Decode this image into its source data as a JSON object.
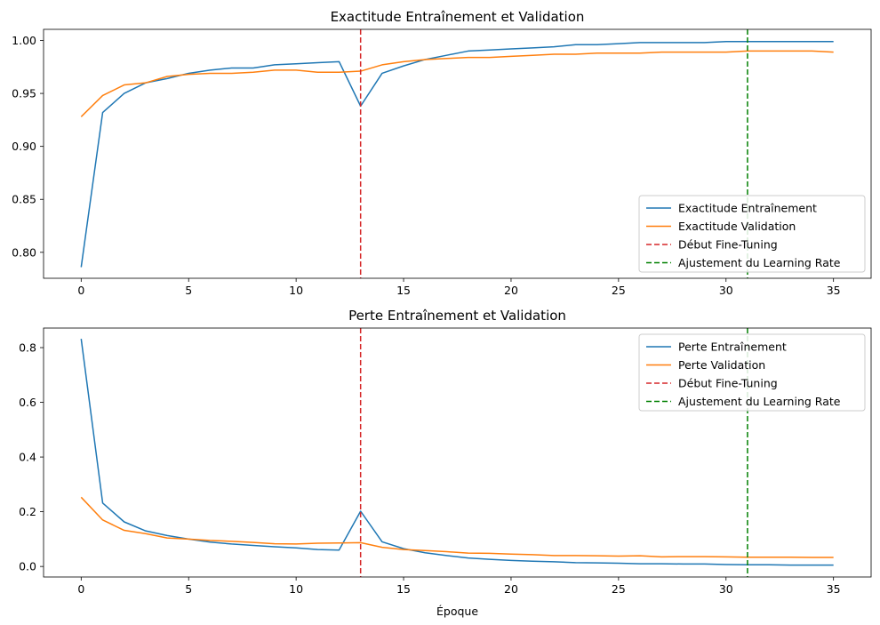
{
  "chart_data": [
    {
      "type": "line",
      "title": "Exactitude Entraînement et Validation",
      "xlabel": "",
      "ylabel": "",
      "xlim": [
        -1.75,
        36.75
      ],
      "ylim": [
        0.7755,
        1.0105
      ],
      "xticks": [
        0,
        5,
        10,
        15,
        20,
        25,
        30,
        35
      ],
      "yticks": [
        0.8,
        0.85,
        0.9,
        0.95,
        1.0
      ],
      "ytick_format": 2,
      "legend_position": "lower-right",
      "grid": false,
      "x": [
        0,
        1,
        2,
        3,
        4,
        5,
        6,
        7,
        8,
        9,
        10,
        11,
        12,
        13,
        14,
        15,
        16,
        17,
        18,
        19,
        20,
        21,
        22,
        23,
        24,
        25,
        26,
        27,
        28,
        29,
        30,
        31,
        32,
        33,
        34,
        35
      ],
      "series": [
        {
          "name": "Exactitude Entraînement",
          "color": "#1f77b4",
          "style": "solid",
          "values": [
            0.786,
            0.932,
            0.95,
            0.96,
            0.964,
            0.969,
            0.972,
            0.974,
            0.974,
            0.977,
            0.978,
            0.979,
            0.98,
            0.938,
            0.969,
            0.976,
            0.982,
            0.986,
            0.99,
            0.991,
            0.992,
            0.993,
            0.994,
            0.996,
            0.996,
            0.997,
            0.998,
            0.998,
            0.998,
            0.998,
            0.999,
            0.999,
            0.999,
            0.999,
            0.999,
            0.999
          ]
        },
        {
          "name": "Exactitude Validation",
          "color": "#ff7f0e",
          "style": "solid",
          "values": [
            0.928,
            0.948,
            0.958,
            0.96,
            0.966,
            0.968,
            0.969,
            0.969,
            0.97,
            0.972,
            0.972,
            0.97,
            0.97,
            0.971,
            0.977,
            0.98,
            0.982,
            0.983,
            0.984,
            0.984,
            0.985,
            0.986,
            0.987,
            0.987,
            0.988,
            0.988,
            0.988,
            0.989,
            0.989,
            0.989,
            0.989,
            0.99,
            0.99,
            0.99,
            0.99,
            0.989
          ]
        }
      ],
      "vlines": [
        {
          "name": "Début Fine-Tuning",
          "x": 13,
          "color": "#d62728",
          "style": "dashed"
        },
        {
          "name": "Ajustement du Learning Rate",
          "x": 31,
          "color": "#008000",
          "style": "dashed"
        }
      ]
    },
    {
      "type": "line",
      "title": "Perte Entraînement et Validation",
      "xlabel": "Époque",
      "ylabel": "",
      "xlim": [
        -1.75,
        36.75
      ],
      "ylim": [
        -0.0385,
        0.8715
      ],
      "xticks": [
        0,
        5,
        10,
        15,
        20,
        25,
        30,
        35
      ],
      "yticks": [
        0.0,
        0.2,
        0.4,
        0.6,
        0.8
      ],
      "ytick_format": 1,
      "legend_position": "upper-right",
      "grid": false,
      "x": [
        0,
        1,
        2,
        3,
        4,
        5,
        6,
        7,
        8,
        9,
        10,
        11,
        12,
        13,
        14,
        15,
        16,
        17,
        18,
        19,
        20,
        21,
        22,
        23,
        24,
        25,
        26,
        27,
        28,
        29,
        30,
        31,
        32,
        33,
        34,
        35
      ],
      "series": [
        {
          "name": "Perte Entraînement",
          "color": "#1f77b4",
          "style": "solid",
          "values": [
            0.832,
            0.232,
            0.163,
            0.13,
            0.113,
            0.1,
            0.089,
            0.082,
            0.077,
            0.072,
            0.068,
            0.062,
            0.06,
            0.202,
            0.09,
            0.065,
            0.05,
            0.04,
            0.031,
            0.026,
            0.022,
            0.019,
            0.017,
            0.014,
            0.013,
            0.012,
            0.01,
            0.01,
            0.009,
            0.009,
            0.007,
            0.006,
            0.006,
            0.005,
            0.005,
            0.005
          ]
        },
        {
          "name": "Perte Validation",
          "color": "#ff7f0e",
          "style": "solid",
          "values": [
            0.253,
            0.17,
            0.132,
            0.12,
            0.104,
            0.1,
            0.095,
            0.092,
            0.088,
            0.083,
            0.082,
            0.085,
            0.086,
            0.087,
            0.07,
            0.062,
            0.058,
            0.054,
            0.049,
            0.048,
            0.045,
            0.043,
            0.04,
            0.04,
            0.039,
            0.038,
            0.039,
            0.035,
            0.036,
            0.036,
            0.035,
            0.034,
            0.034,
            0.034,
            0.033,
            0.033
          ]
        }
      ],
      "vlines": [
        {
          "name": "Début Fine-Tuning",
          "x": 13,
          "color": "#d62728",
          "style": "dashed"
        },
        {
          "name": "Ajustement du Learning Rate",
          "x": 31,
          "color": "#008000",
          "style": "dashed"
        }
      ]
    }
  ]
}
